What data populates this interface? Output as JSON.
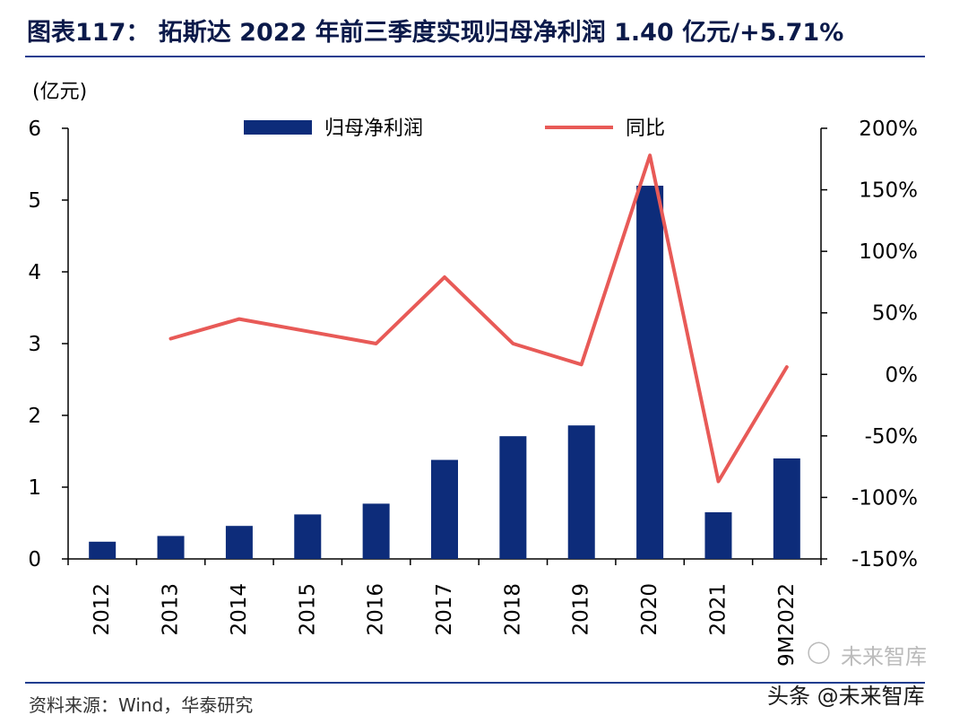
{
  "title": "图表117： 拓斯达 2022 年前三季度实现归母净利润 1.40 亿元/+5.71%",
  "unit_label": "(亿元)",
  "source": "资料来源：Wind，华泰研究",
  "watermark": {
    "line1": "未来智库",
    "line2": "头条 @未来智库"
  },
  "colors": {
    "bar": "#0d2c7a",
    "line": "#e85a57",
    "rule": "#1f3d8f"
  },
  "chart_data": {
    "type": "bar",
    "categories": [
      "2012",
      "2013",
      "2014",
      "2015",
      "2016",
      "2017",
      "2018",
      "2019",
      "2020",
      "2021",
      "9M2022"
    ],
    "series": [
      {
        "name": "归母净利润",
        "type": "bar",
        "axis": "left",
        "values": [
          0.24,
          0.32,
          0.46,
          0.62,
          0.77,
          1.38,
          1.71,
          1.86,
          5.2,
          0.65,
          1.4
        ]
      },
      {
        "name": "同比",
        "type": "line",
        "axis": "right",
        "values": [
          null,
          29,
          45,
          35,
          25,
          79,
          25,
          8,
          178,
          -87,
          6
        ]
      }
    ],
    "yleft": {
      "lim": [
        0,
        6
      ],
      "ticks": [
        0,
        1,
        2,
        3,
        4,
        5,
        6
      ],
      "tick_labels": [
        "0",
        "1",
        "2",
        "3",
        "4",
        "5",
        "6"
      ]
    },
    "yright": {
      "lim": [
        -150,
        200
      ],
      "ticks": [
        -150,
        -100,
        -50,
        0,
        50,
        100,
        150,
        200
      ],
      "tick_labels": [
        "-150%",
        "-100%",
        "-50%",
        "0%",
        "50%",
        "100%",
        "150%",
        "200%"
      ]
    },
    "legend": [
      "归母净利润",
      "同比"
    ],
    "legend_position": "top"
  }
}
